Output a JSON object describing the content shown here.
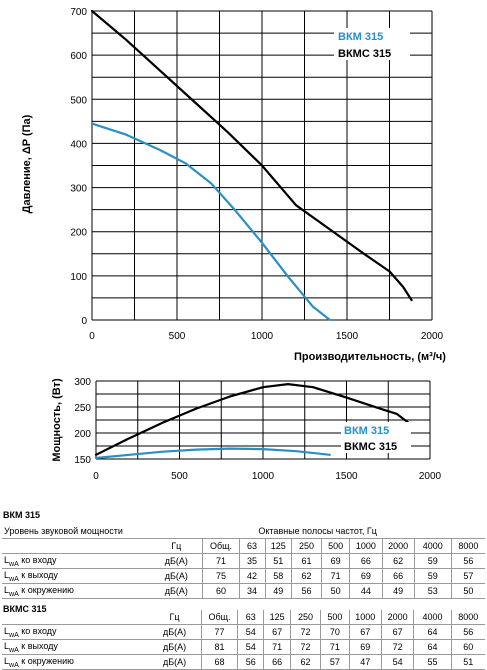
{
  "chart_data": [
    {
      "type": "line",
      "ylabel": "Давление, ΔP (Па)",
      "xlabel": "Производительность, (м³/ч)",
      "xlim": [
        0,
        2000
      ],
      "ylim": [
        0,
        700
      ],
      "x_ticks": [
        "0",
        "500",
        "1000",
        "1500",
        "2000"
      ],
      "y_ticks": [
        "0",
        "100",
        "200",
        "300",
        "400",
        "500",
        "600",
        "700"
      ],
      "grid": true,
      "legend_position": "top-right",
      "series": [
        {
          "name": "ВКМ 315",
          "color": "#2a8fc4",
          "x": [
            0,
            200,
            400,
            550,
            700,
            850,
            1000,
            1150,
            1300,
            1400
          ],
          "y": [
            445,
            420,
            385,
            355,
            310,
            245,
            175,
            100,
            30,
            0
          ]
        },
        {
          "name": "ВКМС 315",
          "color": "#000000",
          "x": [
            0,
            200,
            400,
            600,
            800,
            1000,
            1200,
            1400,
            1600,
            1750,
            1830,
            1880
          ],
          "y": [
            700,
            635,
            565,
            495,
            425,
            350,
            260,
            205,
            150,
            110,
            75,
            45
          ]
        }
      ]
    },
    {
      "type": "line",
      "ylabel": "Мощность, (Вт)",
      "xlim": [
        0,
        2000
      ],
      "ylim": [
        150,
        300
      ],
      "x_ticks": [
        "0",
        "500",
        "1000",
        "1500",
        "2000"
      ],
      "y_ticks": [
        "150",
        "200",
        "250",
        "300"
      ],
      "grid": true,
      "legend_position": "bottom-right",
      "series": [
        {
          "name": "ВКМ 315",
          "color": "#2a8fc4",
          "x": [
            0,
            200,
            400,
            600,
            800,
            1000,
            1200,
            1400
          ],
          "y": [
            152,
            158,
            164,
            168,
            170,
            169,
            165,
            158
          ]
        },
        {
          "name": "ВКМС 315",
          "color": "#000000",
          "x": [
            0,
            200,
            400,
            600,
            800,
            1000,
            1150,
            1300,
            1500,
            1700,
            1800,
            1870
          ],
          "y": [
            158,
            190,
            220,
            247,
            270,
            288,
            294,
            288,
            268,
            247,
            237,
            220
          ]
        }
      ]
    }
  ],
  "table_vkm": {
    "title": "ВКМ 315",
    "header_left": "Уровень звуковой мощности",
    "header_right": "Октавные полосы частот, Гц",
    "unit_hz": "Гц",
    "cols": [
      "Общ.",
      "63",
      "125",
      "250",
      "500",
      "1000",
      "2000",
      "4000",
      "8000"
    ],
    "rows": [
      {
        "sub": "wA",
        "label": " ко входу",
        "unit": "дБ(А)",
        "values": [
          "71",
          "35",
          "51",
          "61",
          "69",
          "66",
          "62",
          "59",
          "56"
        ]
      },
      {
        "sub": "wA",
        "label": " к выходу",
        "unit": "дБ(А)",
        "values": [
          "75",
          "42",
          "58",
          "62",
          "71",
          "69",
          "66",
          "59",
          "57"
        ]
      },
      {
        "sub": "wA",
        "label": " к окружению",
        "unit": "дБ(А)",
        "values": [
          "60",
          "34",
          "49",
          "56",
          "50",
          "44",
          "49",
          "53",
          "50"
        ]
      }
    ]
  },
  "table_vkms": {
    "title": "ВКМС 315",
    "unit_hz": "Гц",
    "cols": [
      "Общ.",
      "63",
      "125",
      "250",
      "500",
      "1000",
      "2000",
      "4000",
      "8000"
    ],
    "rows": [
      {
        "sub": "wA",
        "label": " ко входу",
        "unit": "дБ(А)",
        "values": [
          "77",
          "54",
          "67",
          "72",
          "70",
          "67",
          "67",
          "64",
          "56"
        ]
      },
      {
        "sub": "wA",
        "label": " к выходу",
        "unit": "дБ(А)",
        "values": [
          "81",
          "54",
          "71",
          "72",
          "71",
          "69",
          "72",
          "64",
          "60"
        ]
      },
      {
        "sub": "wA",
        "label": " к окружению",
        "unit": "дБ(А)",
        "values": [
          "68",
          "56",
          "66",
          "62",
          "57",
          "47",
          "54",
          "55",
          "51"
        ]
      }
    ]
  },
  "row_letter": "L"
}
